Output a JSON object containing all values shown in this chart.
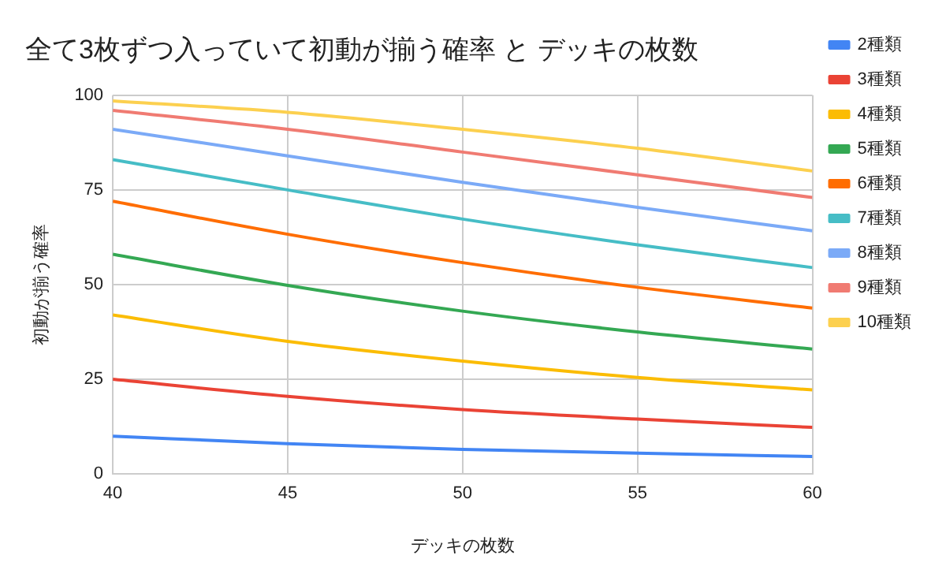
{
  "chart_data": {
    "type": "line",
    "title": "全て3枚ずつ入っていて初動が揃う確率 と デッキの枚数",
    "xlabel": "デッキの枚数",
    "ylabel": "初動が揃う確率",
    "x": [
      40,
      45,
      50,
      55,
      60
    ],
    "series": [
      {
        "name": "2種類",
        "color": "#4285f4",
        "values": [
          10,
          8,
          6.5,
          5.5,
          4.6
        ]
      },
      {
        "name": "3種類",
        "color": "#ea4335",
        "values": [
          25,
          20.5,
          17,
          14.5,
          12.3
        ]
      },
      {
        "name": "4種類",
        "color": "#fbbc04",
        "values": [
          42,
          35,
          29.8,
          25.5,
          22.2
        ]
      },
      {
        "name": "5種類",
        "color": "#34a853",
        "values": [
          58,
          49.8,
          43,
          37.5,
          33
        ]
      },
      {
        "name": "6種類",
        "color": "#ff6d01",
        "values": [
          72,
          63.3,
          55.8,
          49.3,
          43.8
        ]
      },
      {
        "name": "7種類",
        "color": "#46bdc6",
        "values": [
          83,
          75,
          67.3,
          60.5,
          54.5
        ]
      },
      {
        "name": "8種類",
        "color": "#7baaf7",
        "values": [
          91,
          84,
          77,
          70.4,
          64.2
        ]
      },
      {
        "name": "9種類",
        "color": "#f07b72",
        "values": [
          96,
          91,
          85,
          79,
          73
        ]
      },
      {
        "name": "10種類",
        "color": "#fcd04f",
        "values": [
          98.5,
          95.5,
          91,
          86,
          80
        ]
      }
    ],
    "xlim": [
      40,
      60
    ],
    "xticks": [
      40,
      45,
      50,
      55,
      60
    ],
    "ylim": [
      0,
      100
    ],
    "yticks": [
      0,
      25,
      50,
      75,
      100
    ],
    "grid": true,
    "legend": "right",
    "marker": "none"
  }
}
